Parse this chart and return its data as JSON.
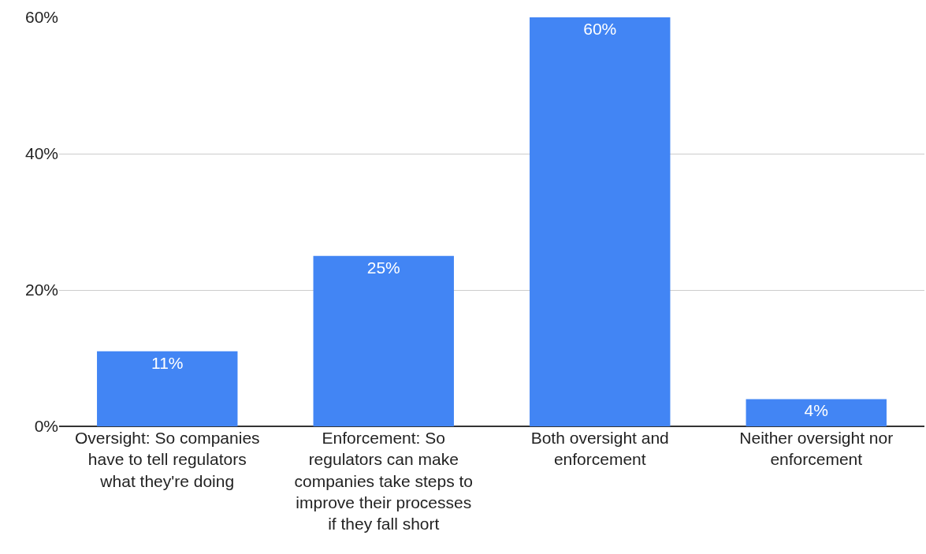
{
  "chart_data": {
    "type": "bar",
    "categories": [
      "Oversight: So companies have to tell regulators what they're doing",
      "Enforcement: So regulators can make companies take steps to improve their processes if they fall short",
      "Both oversight and enforcement",
      "Neither oversight nor enforcement"
    ],
    "values": [
      11,
      25,
      60,
      4
    ],
    "value_labels": [
      "11%",
      "25%",
      "60%",
      "4%"
    ],
    "color": "#4285f4",
    "ylim": [
      0,
      60
    ],
    "yticks": [
      {
        "value": 0,
        "label": "0%"
      },
      {
        "value": 20,
        "label": "20%"
      },
      {
        "value": 40,
        "label": "40%"
      },
      {
        "value": 60,
        "label": "60%"
      }
    ],
    "grid": "y"
  }
}
